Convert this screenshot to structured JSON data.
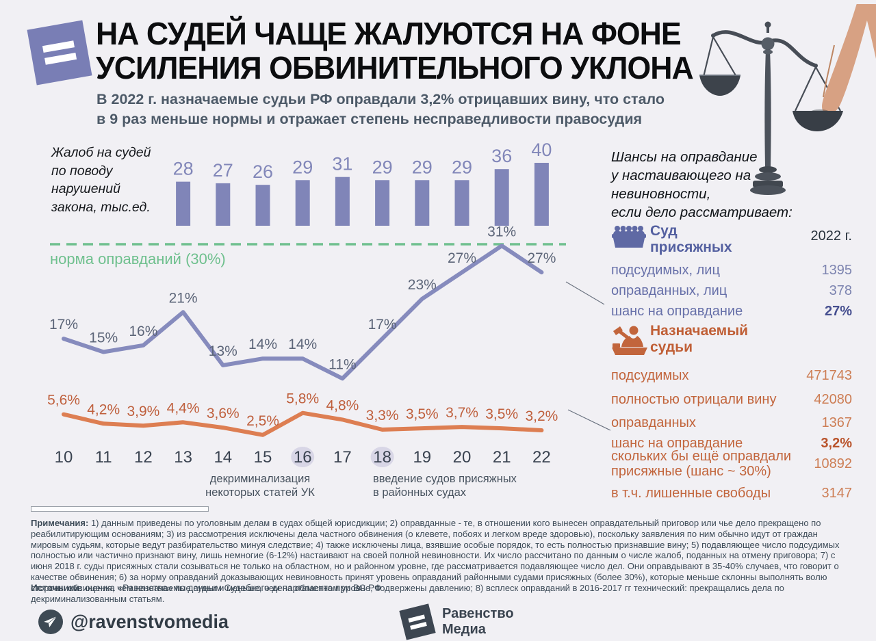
{
  "header": {
    "title": [
      "НА СУДЕЙ ЧАЩЕ ЖАЛУЮТСЯ НА ФОНЕ",
      "УСИЛЕНИЯ ОБВИНИТЕЛЬНОГО УКЛОНА"
    ],
    "subtitle": [
      "В 2022 г. назначаемые судьи РФ оправдали 3,2% отрицавших вину, что стало",
      "в 9 раз меньше нормы и отражает степень несправедливости правосудия"
    ]
  },
  "chart_data": {
    "type": "combo (bar + 2 line series)",
    "x": [
      10,
      11,
      12,
      13,
      14,
      15,
      16,
      17,
      18,
      19,
      20,
      21,
      22
    ],
    "x_note": "годы 2010–2022",
    "bars": {
      "label": "Жалоб на судей по поводу нарушений закона, тыс.ед.",
      "start_year": 13,
      "values": [
        28,
        27,
        26,
        29,
        31,
        29,
        29,
        29,
        36,
        40
      ]
    },
    "series": [
      {
        "name": "суд присяжных, % оправданий",
        "values": [
          17,
          15,
          16,
          21,
          13,
          14,
          14,
          11,
          17,
          23,
          27,
          31,
          27
        ],
        "labels": [
          "17%",
          "15%",
          "16%",
          "21%",
          "13%",
          "14%",
          "14%",
          "11%",
          "17%",
          "23%",
          "27%",
          "31%",
          "27%"
        ],
        "color": "#868bbd",
        "label_class": "pct1"
      },
      {
        "name": "назначаемые судьи, % оправданий",
        "values": [
          5.6,
          4.2,
          3.9,
          4.4,
          3.6,
          2.5,
          5.8,
          4.8,
          3.3,
          3.5,
          3.7,
          3.5,
          3.2
        ],
        "labels": [
          "5,6%",
          "4,2%",
          "3,9%",
          "4,4%",
          "3,6%",
          "2,5%",
          "5,8%",
          "4,8%",
          "3,3%",
          "3,5%",
          "3,7%",
          "3,5%",
          "3,2%"
        ],
        "color": "#dd7e52",
        "label_class": "pct2"
      }
    ],
    "norm_line": {
      "value": 30,
      "label": "норма оправданий (30%)"
    },
    "highlighted_years": [
      16,
      18
    ],
    "annotations": [
      {
        "lines": [
          "декриминализация",
          "некоторых статей УК"
        ],
        "x": 315,
        "anchor": "middle"
      },
      {
        "lines": [
          "введение судов присяжных",
          "в районных судах"
        ],
        "x": 480,
        "anchor": "start"
      }
    ],
    "legend_position": "none",
    "grid": false
  },
  "right_panel": {
    "header": [
      "Шансы на оправдание",
      "у настаивающего на невиновности,",
      "если дело рассматривает:"
    ],
    "jury": {
      "title": [
        "Суд",
        "присяжных"
      ],
      "year": "2022 г.",
      "rows": [
        {
          "label": "подсудимых, лиц",
          "value": "1395"
        },
        {
          "label": "оправданных, лиц",
          "value": "378"
        },
        {
          "label": "шанс на оправдание",
          "value": "27%"
        }
      ]
    },
    "judges": {
      "title": [
        "Назначаемый",
        "судьи"
      ],
      "rows": [
        {
          "label": "подсудимых",
          "value": "471743"
        },
        {
          "label": "полностью отрицали вину",
          "value": "42080"
        },
        {
          "label": "оправданных",
          "value": "1367"
        },
        {
          "label": "шанс на оправдание",
          "value": "3,2%"
        },
        {
          "label": "скольких бы ещё оправдали присяжные (шанс ~ 30%)",
          "value": "10892"
        },
        {
          "label": "в т.ч. лишенные свободы",
          "value": "3147"
        }
      ]
    }
  },
  "notes": {
    "label": "Примечания:",
    "text": " 1) данным приведены по уголовным делам в судах общей юрисдикции; 2) оправданные - те, в отношении кого вынесен оправдательный приговор или чье дело прекращено по реабилитирующим основаниям; 3) из рассмотрения исключены дела частного обвинения (о клевете, побоях и легком вреде здоровью), поскольку заявления по ним обычно идут от граждан мировым судьям, которые ведут разбирательство минуя следствие; 4) также исключены лица, взявшие особые порядок, то есть полностью признавшие вину; 5) подавляющее число подсудимых полностью или частично признают вину, лишь немногие (6-12%) настаивают на своей полной невиновности. Их число рассчитано по данным о числе жалоб, поданных на отмену приговора; 7) с июня 2018 г. суды присяжных стали созываться не только на областном, но и районном уровне, где рассматривается подавляющее число дел. Они оправдывают в 35-40% случаев, что говорит о качестве обвинения; 6) за норму оправданий доказывающих невиновность принят уровень оправданий районными судами присяжных (более 30%), которые меньше склонны выполнять волю стороны обвинения, чем назначаемые судьи и меньше, чем на областном уровне, подвержены давлению; 8) всплеск оправданий в 2016-2017 гг технический: прекращались дела по декриминализованным статьям."
  },
  "sources": {
    "label": "Источники:",
    "text": " оценка «Равенства» по данным Судебного департамента при ВС РФ"
  },
  "footer": {
    "telegram_handle": "@ravenstvomedia",
    "brand": [
      "Равенство",
      "Медиа"
    ]
  },
  "colors": {
    "background": "#f1f0f4",
    "accent_purple": "#797eb5",
    "bar": "#8085b8",
    "line_jury": "#868bbd",
    "line_judges": "#dd7e52",
    "norm_green": "#6fc08e",
    "year_highlight": "#d8d6e6",
    "jury_text": "#6770a9",
    "jury_title": "#5460a0",
    "judges_text": "#c2653c",
    "dark_text": "#3c4a57",
    "connector": "#6b7380"
  }
}
